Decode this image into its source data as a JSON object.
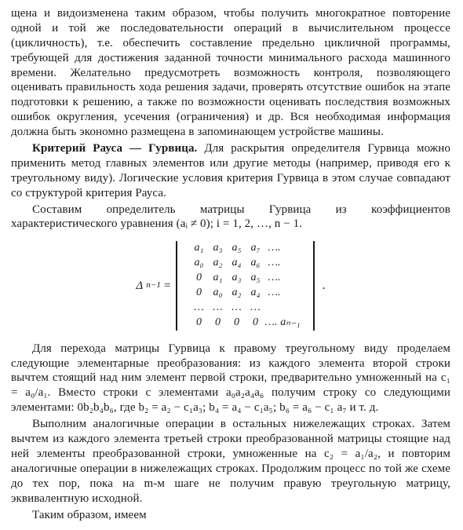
{
  "paragraphs": {
    "p1": "щена и видоизменена таким образом, чтобы получить многократное повторение одной и той же последовательности операций в вычислительном процессе (цикличность), т.е. обеспечить составление предельно цикличной программы, требующей для достижения заданной точности минимального расхода машинного времени. Желательно предусмотреть возможность контроля, позволяющего оценивать правильность хода решения задачи, проверять отсутствие ошибок на этапе подготовки к решению, а также по возможности оценивать последствия возможных ошибок округления, усечения (ограничения) и др. Вся необходимая информация должна быть экономно размещена в запоминающем устройстве машины.",
    "p2_bold": "Критерий Рауса — Гурвица.",
    "p2_rest": " Для раскрытия определителя Гурвица можно применить метод главных элементов или другие методы (например, приводя его к треугольному виду). Логические условия критерия Гурвица в этом случае совпадают со структурой критерия Рауса.",
    "p3": "Составим определитель матрицы Гурвица из коэффициентов характеристического уравнения (aᵢ ≠ 0); i = 1, 2, …, n − 1.",
    "p4": "Для перехода матрицы Гурвица к правому треугольному виду проделаем следующие элементарные преобразования: из каждого элемента второй строки вычтем стоящий над ним элемент первой строки, предварительно умноженный на c₁ = a₀/a₁. Вместо строки с элементами a₀a₂a₄a₆ получим строку со следующими элементами: 0b₂b₄b₆, где b₂ = a₂ − c₁a₃; b₄ = a₄ − c₁a₅; b₆ = a₆ − c₁ a₇ и т. д.",
    "p5": "Выполним аналогичные операции в остальных нижележащих строках. Затем вычтем из каждого элемента третьей строки преобразованной матрицы стоящие над ней элементы преобразованной строки, умноженные на c₂ = a₁/a₂, и повторим аналогичные операции в нижележащих строках. Продолжим процесс по той же схеме до тех пор, пока на m-м шаге не получим правую треугольную матрицу, эквивалентную исходной.",
    "p6": "Таким образом, имеем"
  },
  "formula": {
    "left_label": "Δ",
    "left_sub": "n−1",
    "equals": "=",
    "matrix_rows": [
      [
        "a₁",
        "a₃",
        "a₅",
        "a₇",
        "…."
      ],
      [
        "a₀",
        "a₂",
        "a₄",
        "a₆",
        "…."
      ],
      [
        "0",
        "a₁",
        "a₃",
        "a₅",
        "…."
      ],
      [
        "0",
        "a₀",
        "a₂",
        "a₄",
        "…."
      ],
      [
        "…",
        "…",
        "…",
        "…",
        ""
      ],
      [
        "0",
        "0",
        "0",
        "0",
        "…. aₙ₋₁"
      ]
    ],
    "tail": "."
  }
}
